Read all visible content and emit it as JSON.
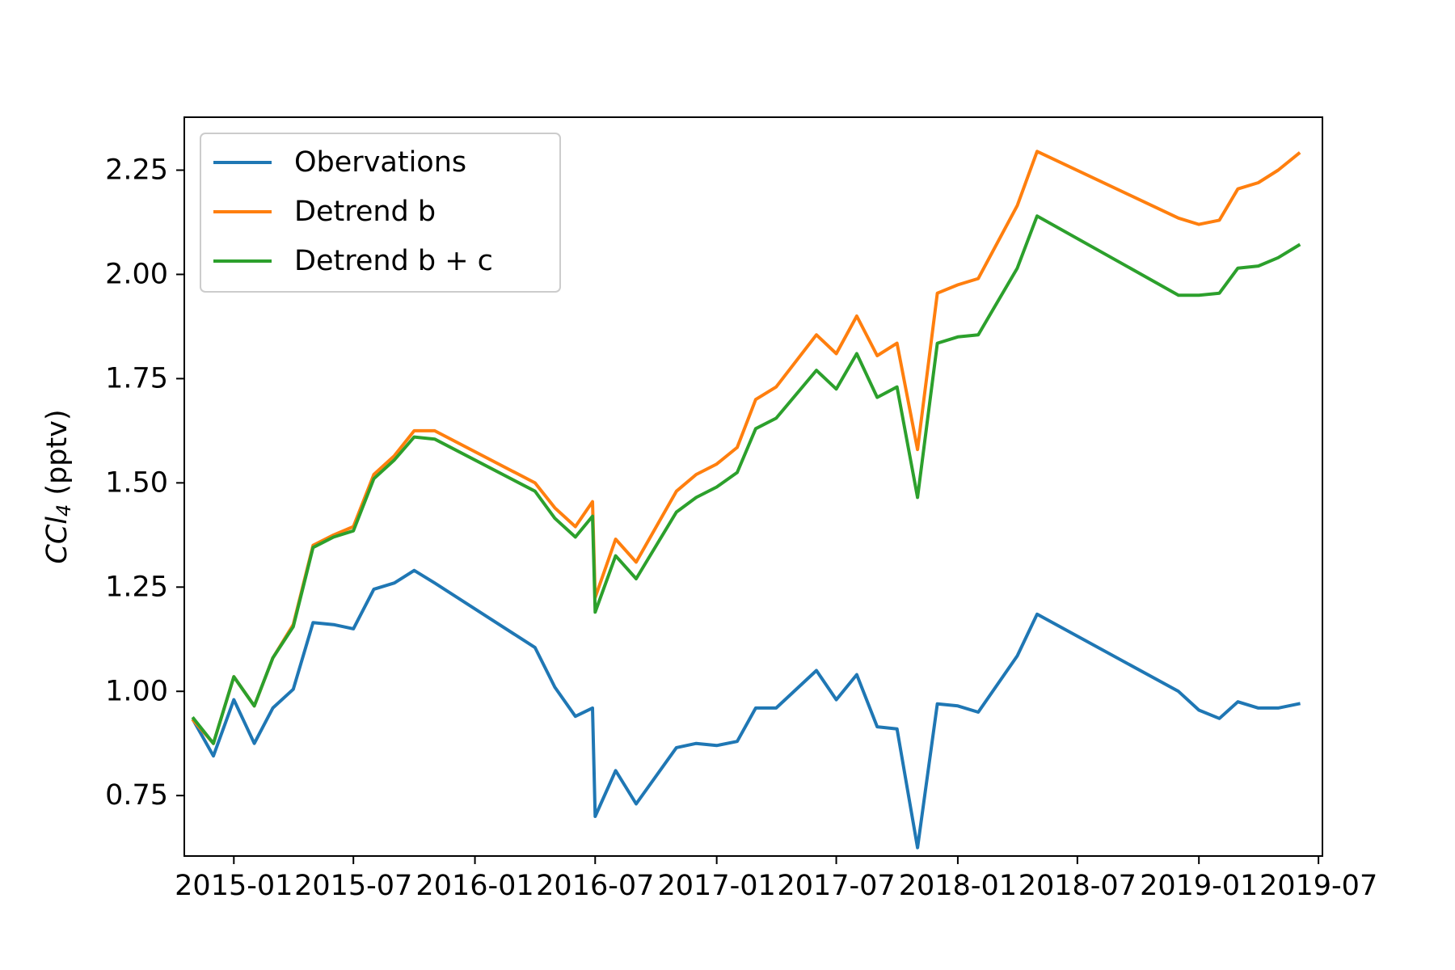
{
  "chart_data": {
    "type": "line",
    "title": "",
    "xlabel": "",
    "ylabel": {
      "prefix": "CCl",
      "subscript": "4",
      "suffix": " (pptv)"
    },
    "x_ticks": [
      "2015-01",
      "2015-07",
      "2016-01",
      "2016-07",
      "2017-01",
      "2017-07",
      "2018-01",
      "2018-07",
      "2019-01",
      "2019-07"
    ],
    "y_ticks": [
      "0.75",
      "1.00",
      "1.25",
      "1.50",
      "1.75",
      "2.00",
      "2.25"
    ],
    "xlim": [
      "2014-10-18",
      "2019-07-07"
    ],
    "ylim": [
      0.605,
      2.377
    ],
    "grid": false,
    "legend_position": "upper-left",
    "x": [
      "2014-11-01",
      "2014-12-01",
      "2015-01-01",
      "2015-02-01",
      "2015-03-01",
      "2015-04-01",
      "2015-05-01",
      "2015-06-01",
      "2015-07-01",
      "2015-08-01",
      "2015-09-01",
      "2015-10-01",
      "2015-11-01",
      "2016-04-01",
      "2016-05-01",
      "2016-06-01",
      "2016-06-27",
      "2016-07-01",
      "2016-08-01",
      "2016-09-01",
      "2016-11-01",
      "2016-12-01",
      "2017-01-01",
      "2017-02-01",
      "2017-03-01",
      "2017-04-01",
      "2017-06-01",
      "2017-07-01",
      "2017-08-01",
      "2017-09-01",
      "2017-10-01",
      "2017-11-01",
      "2017-12-01",
      "2018-01-01",
      "2018-02-01",
      "2018-04-01",
      "2018-05-01",
      "2018-12-01",
      "2019-01-01",
      "2019-02-01",
      "2019-03-01",
      "2019-04-01",
      "2019-05-01",
      "2019-06-01"
    ],
    "series": [
      {
        "name": "Obervations",
        "color": "#1f77b4",
        "values": [
          0.93,
          0.845,
          0.98,
          0.875,
          0.96,
          1.005,
          1.165,
          1.16,
          1.15,
          1.245,
          1.26,
          1.29,
          1.26,
          1.105,
          1.01,
          0.94,
          0.96,
          0.7,
          0.81,
          0.73,
          0.865,
          0.875,
          0.87,
          0.88,
          0.96,
          0.96,
          1.05,
          0.98,
          1.04,
          0.915,
          0.91,
          0.625,
          0.97,
          0.965,
          0.95,
          1.085,
          1.185,
          1.0,
          0.955,
          0.935,
          0.975,
          0.96,
          0.96,
          0.97
        ]
      },
      {
        "name": "Detrend b",
        "color": "#ff7f0e",
        "values": [
          0.93,
          0.875,
          1.035,
          0.965,
          1.08,
          1.16,
          1.35,
          1.375,
          1.395,
          1.52,
          1.565,
          1.625,
          1.625,
          1.5,
          1.44,
          1.395,
          1.455,
          1.225,
          1.365,
          1.31,
          1.48,
          1.52,
          1.545,
          1.585,
          1.7,
          1.73,
          1.855,
          1.81,
          1.9,
          1.805,
          1.835,
          1.58,
          1.955,
          1.975,
          1.99,
          2.165,
          2.295,
          2.135,
          2.12,
          2.13,
          2.205,
          2.22,
          2.25,
          2.29
        ]
      },
      {
        "name": "Detrend b + c",
        "color": "#2ca02c",
        "values": [
          0.935,
          0.875,
          1.035,
          0.965,
          1.08,
          1.155,
          1.345,
          1.37,
          1.385,
          1.51,
          1.555,
          1.61,
          1.605,
          1.48,
          1.415,
          1.37,
          1.42,
          1.19,
          1.325,
          1.27,
          1.43,
          1.465,
          1.49,
          1.525,
          1.63,
          1.655,
          1.77,
          1.725,
          1.81,
          1.705,
          1.73,
          1.465,
          1.835,
          1.85,
          1.855,
          2.015,
          2.14,
          1.95,
          1.95,
          1.955,
          2.015,
          2.02,
          2.04,
          2.07
        ]
      }
    ]
  }
}
